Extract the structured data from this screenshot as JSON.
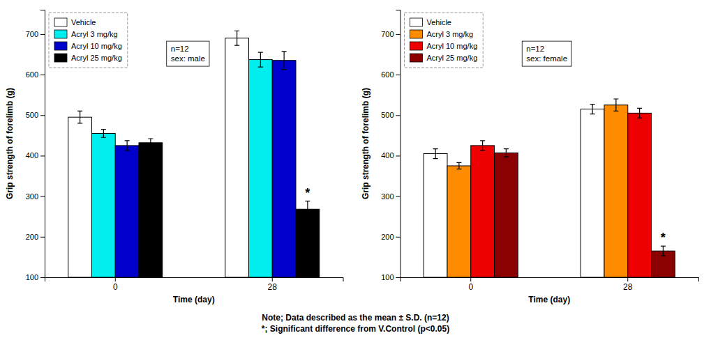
{
  "chart_data": [
    {
      "type": "bar",
      "categories": [
        "0",
        "28"
      ],
      "xlabel": "Time (day)",
      "ylabel": "Grip strength of forelimb (g)",
      "ylim": [
        100,
        760
      ],
      "yticks": [
        100,
        200,
        300,
        400,
        500,
        600,
        700
      ],
      "grid": false,
      "legend": "upper left",
      "series": [
        {
          "name": "Vehicle",
          "color": "white",
          "values": [
            495,
            690
          ],
          "errors": [
            15,
            18
          ]
        },
        {
          "name": "Acryl 3 mg/kg",
          "color": "#00EEEE",
          "values": [
            455,
            637
          ],
          "errors": [
            10,
            18
          ]
        },
        {
          "name": "Acryl 10 mg/kg",
          "color": "#0000CC",
          "values": [
            425,
            635
          ],
          "errors": [
            12,
            22
          ]
        },
        {
          "name": "Acryl 25 mg/kg",
          "color": "black",
          "values": [
            432,
            268
          ],
          "errors": [
            10,
            20
          ]
        }
      ],
      "annotations": [
        {
          "text": "n=12\nsex: male"
        },
        {
          "text": "*",
          "series": 3,
          "category": 1
        }
      ],
      "note": "Note; Data described as the mean ± S.D. (n=12)\n*; Significant difference from V.Control (p<0.05)"
    },
    {
      "type": "bar",
      "categories": [
        "0",
        "28"
      ],
      "xlabel": "Time (day)",
      "ylabel": "Grip strength of forelimb (g)",
      "ylim": [
        100,
        760
      ],
      "yticks": [
        100,
        200,
        300,
        400,
        500,
        600,
        700
      ],
      "grid": false,
      "legend": "upper left",
      "series": [
        {
          "name": "Vehicle",
          "color": "white",
          "values": [
            405,
            515
          ],
          "errors": [
            12,
            12
          ]
        },
        {
          "name": "Acryl 3 mg/kg",
          "color": "#FF8C00",
          "values": [
            375,
            525
          ],
          "errors": [
            8,
            15
          ]
        },
        {
          "name": "Acryl 10 mg/kg",
          "color": "#EE0000",
          "values": [
            425,
            505
          ],
          "errors": [
            12,
            12
          ]
        },
        {
          "name": "Acryl 25 mg/kg",
          "color": "#8B0000",
          "values": [
            407,
            165
          ],
          "errors": [
            10,
            12
          ]
        }
      ],
      "annotations": [
        {
          "text": "n=12\nsex: female"
        },
        {
          "text": "*",
          "series": 3,
          "category": 1
        }
      ]
    }
  ]
}
